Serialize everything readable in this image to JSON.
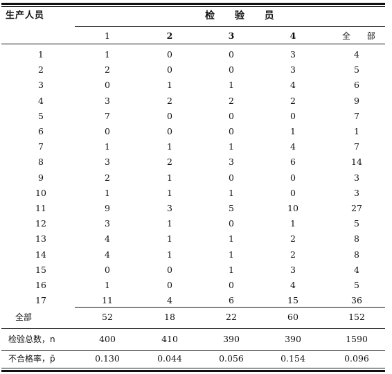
{
  "header": {
    "row_label": "生产人员",
    "group_label": "检 验 员",
    "inspectors": [
      "1",
      "2",
      "3",
      "4",
      "全 部"
    ]
  },
  "rows": [
    {
      "label": "1",
      "values": [
        "1",
        "0",
        "0",
        "3",
        "4"
      ]
    },
    {
      "label": "2",
      "values": [
        "2",
        "0",
        "0",
        "3",
        "5"
      ]
    },
    {
      "label": "3",
      "values": [
        "0",
        "1",
        "1",
        "4",
        "6"
      ]
    },
    {
      "label": "4",
      "values": [
        "3",
        "2",
        "2",
        "2",
        "9"
      ]
    },
    {
      "label": "5",
      "values": [
        "7",
        "0",
        "0",
        "0",
        "7"
      ]
    },
    {
      "label": "6",
      "values": [
        "0",
        "0",
        "0",
        "1",
        "1"
      ]
    },
    {
      "label": "7",
      "values": [
        "1",
        "1",
        "1",
        "4",
        "7"
      ]
    },
    {
      "label": "8",
      "values": [
        "3",
        "2",
        "3",
        "6",
        "14"
      ]
    },
    {
      "label": "9",
      "values": [
        "2",
        "1",
        "0",
        "0",
        "3"
      ]
    },
    {
      "label": "10",
      "values": [
        "1",
        "1",
        "1",
        "0",
        "3"
      ]
    },
    {
      "label": "11",
      "values": [
        "9",
        "3",
        "5",
        "10",
        "27"
      ]
    },
    {
      "label": "12",
      "values": [
        "3",
        "1",
        "0",
        "1",
        "5"
      ]
    },
    {
      "label": "13",
      "values": [
        "4",
        "1",
        "1",
        "2",
        "8"
      ]
    },
    {
      "label": "14",
      "values": [
        "4",
        "1",
        "1",
        "2",
        "8"
      ]
    },
    {
      "label": "15",
      "values": [
        "0",
        "0",
        "1",
        "3",
        "4"
      ]
    },
    {
      "label": "16",
      "values": [
        "1",
        "0",
        "0",
        "4",
        "5"
      ]
    },
    {
      "label": "17",
      "values": [
        "11",
        "4",
        "6",
        "15",
        "36"
      ]
    }
  ],
  "summary": [
    {
      "label": "全部",
      "values": [
        "52",
        "18",
        "22",
        "60",
        "152"
      ]
    },
    {
      "label": "检验总数，n",
      "values": [
        "400",
        "410",
        "390",
        "390",
        "1590"
      ]
    },
    {
      "label": "不合格率，p̄",
      "values": [
        "0.130",
        "0.044",
        "0.056",
        "0.154",
        "0.096"
      ]
    }
  ]
}
